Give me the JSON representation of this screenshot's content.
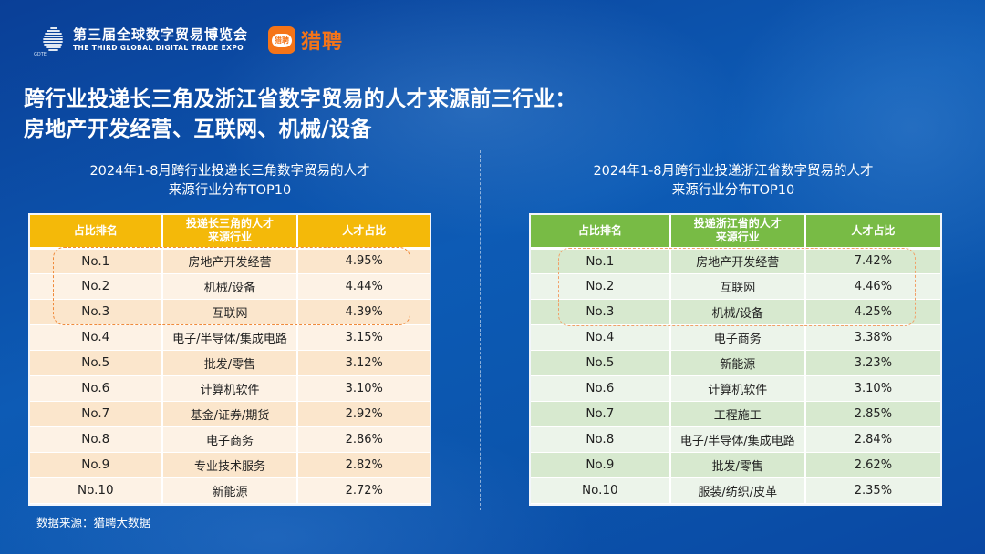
{
  "header": {
    "expo_name_cn": "第三届全球数字贸易博览会",
    "expo_name_en": "THE THIRD GLOBAL DIGITAL TRADE EXPO",
    "expo_logo_mark": "GDTE",
    "partner_icon_text": "猎聘",
    "partner_name": "猎聘"
  },
  "title": {
    "line1": "跨行业投递长三角及浙江省数字贸易的人才来源前三行业：",
    "line2": "房地产开发经营、互联网、机械/设备"
  },
  "colors": {
    "left_header": "#f4b909",
    "right_header": "#78bb45",
    "highlight_border": "#f08a3a",
    "partner_brand": "#f57418"
  },
  "left_table": {
    "subtitle_line1": "2024年1-8月跨行业投递长三角数字贸易的人才",
    "subtitle_line2": "来源行业分布TOP10",
    "headers": {
      "rank": "占比排名",
      "industry_line1": "投递长三角的人才",
      "industry_line2": "来源行业",
      "share": "人才占比"
    },
    "rows": [
      {
        "rank": "No.1",
        "industry": "房地产开发经营",
        "share": "4.95%"
      },
      {
        "rank": "No.2",
        "industry": "机械/设备",
        "share": "4.44%"
      },
      {
        "rank": "No.3",
        "industry": "互联网",
        "share": "4.39%"
      },
      {
        "rank": "No.4",
        "industry": "电子/半导体/集成电路",
        "share": "3.15%"
      },
      {
        "rank": "No.5",
        "industry": "批发/零售",
        "share": "3.12%"
      },
      {
        "rank": "No.6",
        "industry": "计算机软件",
        "share": "3.10%"
      },
      {
        "rank": "No.7",
        "industry": "基金/证券/期货",
        "share": "2.92%"
      },
      {
        "rank": "No.8",
        "industry": "电子商务",
        "share": "2.86%"
      },
      {
        "rank": "No.9",
        "industry": "专业技术服务",
        "share": "2.82%"
      },
      {
        "rank": "No.10",
        "industry": "新能源",
        "share": "2.72%"
      }
    ]
  },
  "right_table": {
    "subtitle_line1": "2024年1-8月跨行业投递浙江省数字贸易的人才",
    "subtitle_line2": "来源行业分布TOP10",
    "headers": {
      "rank": "占比排名",
      "industry_line1": "投递浙江省的人才",
      "industry_line2": "来源行业",
      "share": "人才占比"
    },
    "rows": [
      {
        "rank": "No.1",
        "industry": "房地产开发经营",
        "share": "7.42%"
      },
      {
        "rank": "No.2",
        "industry": "互联网",
        "share": "4.46%"
      },
      {
        "rank": "No.3",
        "industry": "机械/设备",
        "share": "4.25%"
      },
      {
        "rank": "No.4",
        "industry": "电子商务",
        "share": "3.38%"
      },
      {
        "rank": "No.5",
        "industry": "新能源",
        "share": "3.23%"
      },
      {
        "rank": "No.6",
        "industry": "计算机软件",
        "share": "3.10%"
      },
      {
        "rank": "No.7",
        "industry": "工程施工",
        "share": "2.85%"
      },
      {
        "rank": "No.8",
        "industry": "电子/半导体/集成电路",
        "share": "2.84%"
      },
      {
        "rank": "No.9",
        "industry": "批发/零售",
        "share": "2.62%"
      },
      {
        "rank": "No.10",
        "industry": "服装/纺织/皮革",
        "share": "2.35%"
      }
    ]
  },
  "footer": {
    "source": "数据来源：猎聘大数据"
  }
}
